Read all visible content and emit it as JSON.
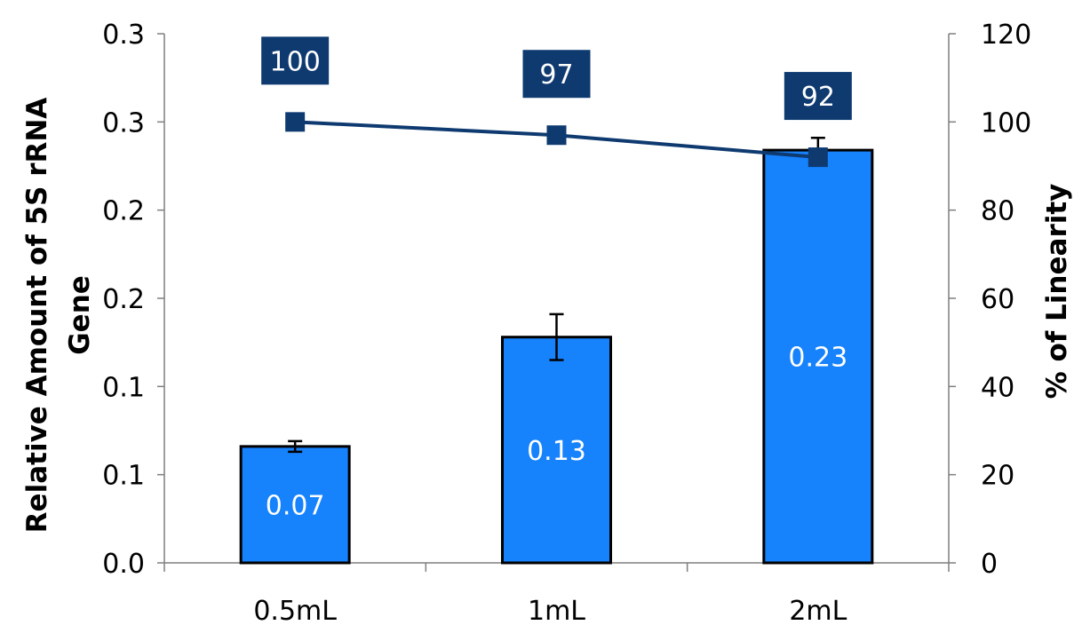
{
  "chart_data": {
    "type": "bar",
    "categories": [
      "0.5mL",
      "1mL",
      "2mL"
    ],
    "y_left": {
      "label": "Relative Amount of 5S rRNA Gene",
      "label_lines": [
        "Relative Amount of 5S rRNA",
        "Gene"
      ],
      "ticks": [
        "0.0",
        "0.1",
        "0.1",
        "0.2",
        "0.2",
        "0.3",
        "0.3"
      ],
      "lim": [
        0,
        0.3
      ]
    },
    "y_right": {
      "label": "% of Linearity",
      "ticks": [
        "0",
        "20",
        "40",
        "60",
        "80",
        "100",
        "120"
      ],
      "lim": [
        0,
        120
      ]
    },
    "series": [
      {
        "type": "bar",
        "axis": "left",
        "values": [
          0.066,
          0.128,
          0.234
        ],
        "data_labels": [
          "0.07",
          "0.13",
          "0.23"
        ],
        "errors": [
          0.003,
          0.013,
          0.007
        ],
        "color": "#1682FC"
      },
      {
        "type": "line",
        "axis": "right",
        "values": [
          100,
          97,
          92
        ],
        "data_labels": [
          "100",
          "97",
          "92"
        ],
        "color": "#0E3A70"
      }
    ],
    "grid": false,
    "legend": "none"
  }
}
